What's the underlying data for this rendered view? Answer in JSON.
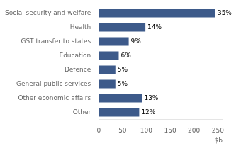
{
  "chart_data": {
    "type": "bar",
    "orientation": "horizontal",
    "categories": [
      "Other",
      "Other economic affairs",
      "General public services",
      "Defence",
      "Education",
      "GST transfer to states",
      "Health",
      "Social security and welfare"
    ],
    "values": [
      85,
      91,
      35,
      35,
      42,
      63,
      98,
      245
    ],
    "value_labels": [
      "12%",
      "13%",
      "5%",
      "5%",
      "6%",
      "9%",
      "14%",
      "35%"
    ],
    "color": "#3d5a8a",
    "xlabel": "$b",
    "xlim": [
      0,
      260
    ],
    "xticks": [
      0,
      50,
      100,
      150,
      200,
      250
    ],
    "grid": false
  }
}
